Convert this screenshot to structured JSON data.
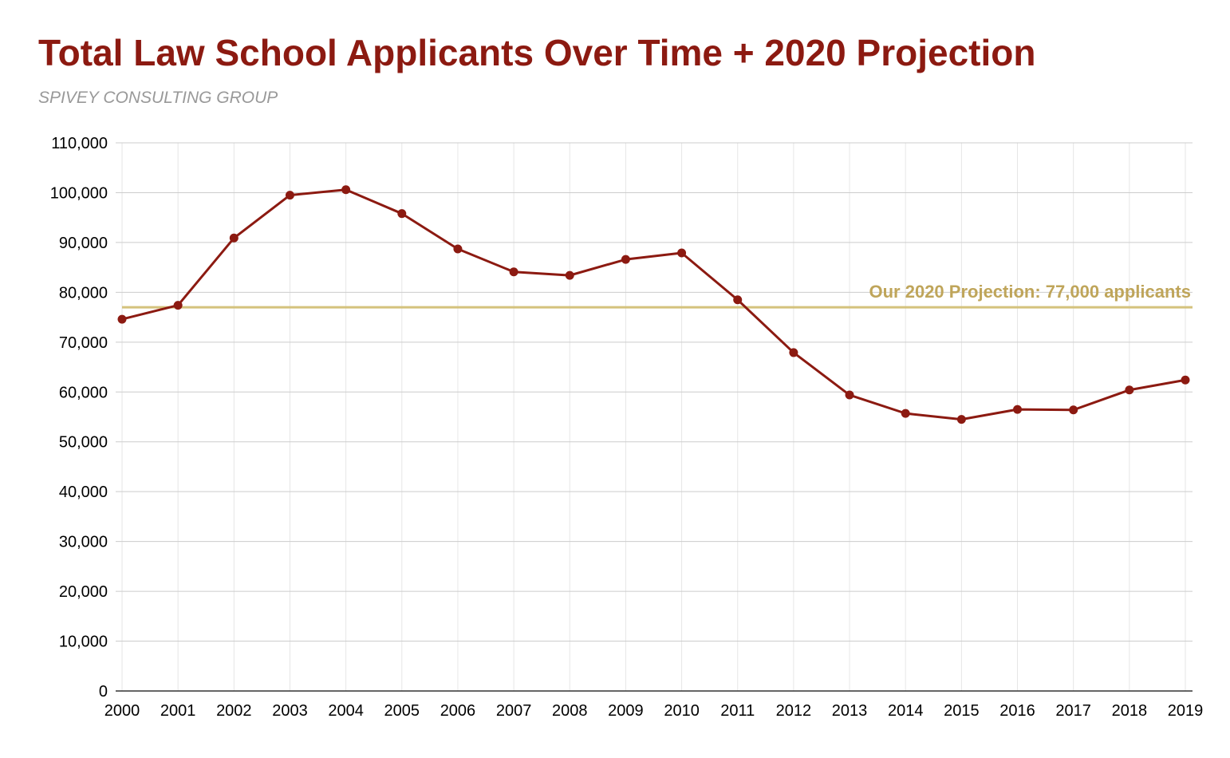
{
  "colors": {
    "title": "#8c1a11",
    "subtitle": "#999999",
    "series": "#8c1a11",
    "reference": "#d4c27c",
    "reference_label": "#bfa55a",
    "grid": "#cccccc",
    "grid_minor": "#e6e6e6",
    "axis": "#333333"
  },
  "chart_data": {
    "type": "line",
    "title": "Total Law School Applicants Over Time + 2020 Projection",
    "subtitle": "SPIVEY CONSULTING GROUP",
    "xlabel": "",
    "ylabel": "",
    "x": [
      2000,
      2001,
      2002,
      2003,
      2004,
      2005,
      2006,
      2007,
      2008,
      2009,
      2010,
      2011,
      2012,
      2013,
      2014,
      2015,
      2016,
      2017,
      2018,
      2019
    ],
    "x_tick_labels": [
      "2000",
      "2001",
      "2002",
      "2003",
      "2004",
      "2005",
      "2006",
      "2007",
      "2008",
      "2009",
      "2010",
      "2011",
      "2012",
      "2013",
      "2014",
      "2015",
      "2016",
      "2017",
      "2018",
      "2019"
    ],
    "series": [
      {
        "values": [
          74600,
          77400,
          90900,
          99500,
          100600,
          95800,
          88700,
          84100,
          83400,
          86600,
          87900,
          78500,
          67900,
          59400,
          55700,
          54500,
          56500,
          56400,
          60400,
          62400
        ]
      }
    ],
    "reference_line": {
      "value": 77000,
      "label": "Our 2020 Projection: 77,000 applicants"
    },
    "ylim": [
      0,
      110000
    ],
    "y_ticks": [
      0,
      10000,
      20000,
      30000,
      40000,
      50000,
      60000,
      70000,
      80000,
      90000,
      100000,
      110000
    ],
    "y_tick_labels": [
      "0",
      "10,000",
      "20,000",
      "30,000",
      "40,000",
      "50,000",
      "60,000",
      "70,000",
      "80,000",
      "90,000",
      "100,000",
      "110,000"
    ],
    "grid": true,
    "legend": "none"
  }
}
